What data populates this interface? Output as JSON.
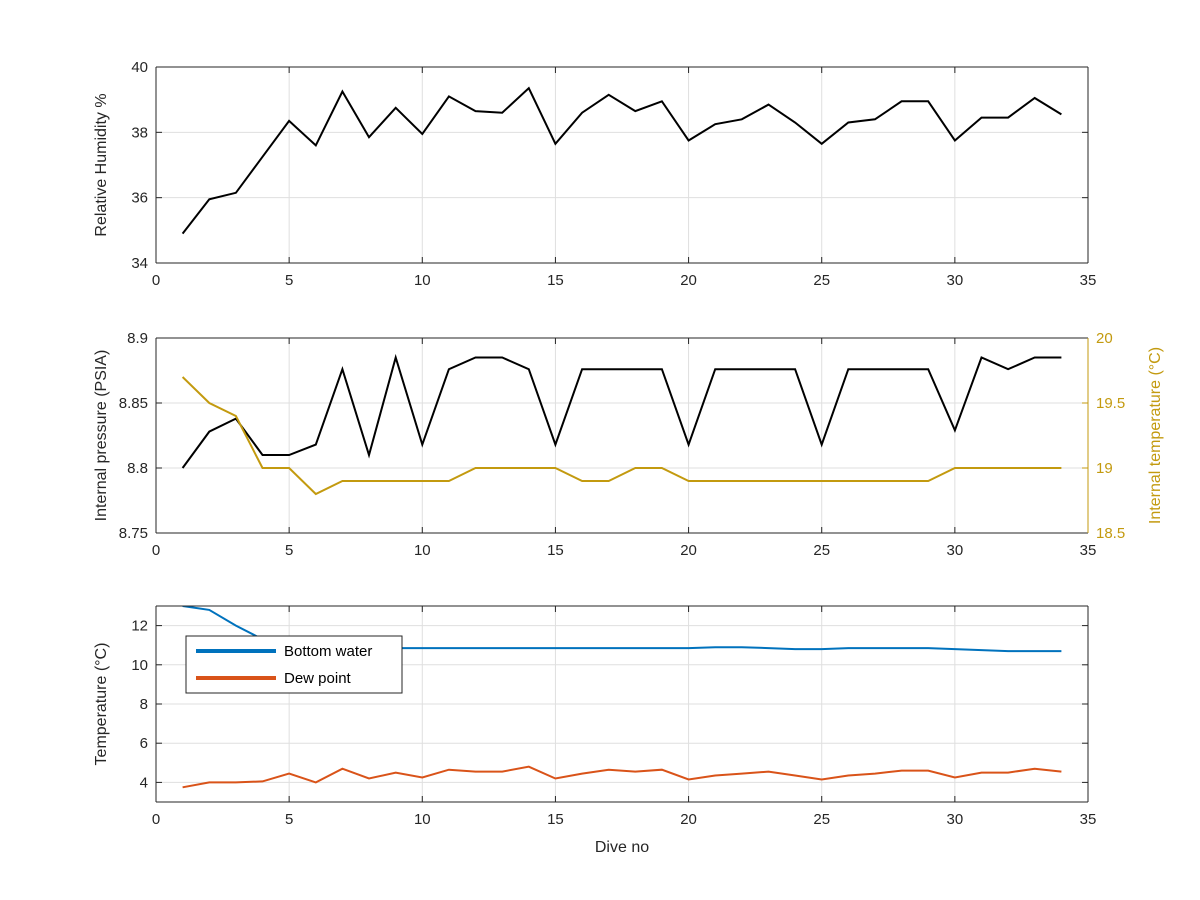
{
  "chart_data": [
    {
      "type": "line",
      "xlim": [
        0,
        35
      ],
      "ylim": [
        34,
        40
      ],
      "xticks": [
        "0",
        "5",
        "10",
        "15",
        "20",
        "25",
        "30",
        "35"
      ],
      "yticks": [
        "34",
        "36",
        "38",
        "40"
      ],
      "xlabel": "",
      "ylabel": "Relative Humidity %",
      "grid": true,
      "series": [
        {
          "color": "#000000",
          "x": [
            1,
            2,
            3,
            4,
            5,
            6,
            7,
            8,
            9,
            10,
            11,
            12,
            13,
            14,
            15,
            16,
            17,
            18,
            19,
            20,
            21,
            22,
            23,
            24,
            25,
            26,
            27,
            28,
            29,
            30,
            31,
            32,
            33,
            34
          ],
          "values": [
            34.9,
            35.95,
            36.15,
            37.25,
            38.35,
            37.6,
            39.25,
            37.85,
            38.75,
            37.95,
            39.1,
            38.65,
            38.6,
            39.35,
            37.65,
            38.6,
            39.15,
            38.65,
            38.95,
            37.75,
            38.25,
            38.4,
            38.85,
            38.3,
            37.65,
            38.3,
            38.4,
            38.95,
            38.95,
            37.75,
            38.45,
            38.45,
            39.05,
            38.55
          ]
        }
      ]
    },
    {
      "type": "line",
      "xlim": [
        0,
        35
      ],
      "ylim": [
        8.75,
        8.9
      ],
      "ylim_right": [
        18.5,
        20
      ],
      "xticks": [
        "0",
        "5",
        "10",
        "15",
        "20",
        "25",
        "30",
        "35"
      ],
      "yticks": [
        "8.75",
        "8.8",
        "8.85",
        "8.9"
      ],
      "yticks_right": [
        "18.5",
        "19",
        "19.5",
        "20"
      ],
      "xlabel": "",
      "ylabel": "Internal pressure (PSIA)",
      "ylabel_right": "Internal temperature (°C)",
      "right_axis_color": "#C39A0F",
      "grid": true,
      "series": [
        {
          "axis": "left",
          "color": "#000000",
          "x": [
            1,
            2,
            3,
            4,
            5,
            6,
            7,
            8,
            9,
            10,
            11,
            12,
            13,
            14,
            15,
            16,
            17,
            18,
            19,
            20,
            21,
            22,
            23,
            24,
            25,
            26,
            27,
            28,
            29,
            30,
            31,
            32,
            33,
            34
          ],
          "values": [
            8.8,
            8.828,
            8.838,
            8.81,
            8.81,
            8.818,
            8.876,
            8.81,
            8.885,
            8.818,
            8.876,
            8.885,
            8.885,
            8.876,
            8.818,
            8.876,
            8.876,
            8.876,
            8.876,
            8.818,
            8.876,
            8.876,
            8.876,
            8.876,
            8.818,
            8.876,
            8.876,
            8.876,
            8.876,
            8.829,
            8.885,
            8.876,
            8.885,
            8.885
          ]
        },
        {
          "axis": "right",
          "color": "#C39A0F",
          "x": [
            1,
            2,
            3,
            4,
            5,
            6,
            7,
            8,
            9,
            10,
            11,
            12,
            13,
            14,
            15,
            16,
            17,
            18,
            19,
            20,
            21,
            22,
            23,
            24,
            25,
            26,
            27,
            28,
            29,
            30,
            31,
            32,
            33,
            34
          ],
          "values": [
            19.7,
            19.5,
            19.4,
            19.0,
            19.0,
            18.8,
            18.9,
            18.9,
            18.9,
            18.9,
            18.9,
            19.0,
            19.0,
            19.0,
            19.0,
            18.9,
            18.9,
            19.0,
            19.0,
            18.9,
            18.9,
            18.9,
            18.9,
            18.9,
            18.9,
            18.9,
            18.9,
            18.9,
            18.9,
            19.0,
            19.0,
            19.0,
            19.0,
            19.0
          ]
        }
      ]
    },
    {
      "type": "line",
      "xlim": [
        0,
        35
      ],
      "ylim": [
        3,
        13
      ],
      "xticks": [
        "0",
        "5",
        "10",
        "15",
        "20",
        "25",
        "30",
        "35"
      ],
      "yticks": [
        "4",
        "6",
        "8",
        "10",
        "12"
      ],
      "xlabel": "Dive no",
      "ylabel": "Temperature (°C)",
      "grid": true,
      "legend_position": "top-left",
      "series": [
        {
          "name": "Bottom water",
          "color": "#0072BD",
          "x": [
            1,
            2,
            3,
            4,
            5,
            6,
            7,
            8,
            9,
            10,
            11,
            12,
            13,
            14,
            15,
            16,
            17,
            18,
            19,
            20,
            21,
            22,
            23,
            24,
            25,
            26,
            27,
            28,
            29,
            30,
            31,
            32,
            33,
            34
          ],
          "values": [
            13.0,
            12.8,
            12.0,
            11.3,
            10.9,
            10.85,
            10.85,
            10.85,
            10.85,
            10.85,
            10.85,
            10.85,
            10.85,
            10.85,
            10.85,
            10.85,
            10.85,
            10.85,
            10.85,
            10.85,
            10.9,
            10.9,
            10.85,
            10.8,
            10.8,
            10.85,
            10.85,
            10.85,
            10.85,
            10.8,
            10.75,
            10.7,
            10.7,
            10.7
          ]
        },
        {
          "name": "Dew point",
          "color": "#D95319",
          "x": [
            1,
            2,
            3,
            4,
            5,
            6,
            7,
            8,
            9,
            10,
            11,
            12,
            13,
            14,
            15,
            16,
            17,
            18,
            19,
            20,
            21,
            22,
            23,
            24,
            25,
            26,
            27,
            28,
            29,
            30,
            31,
            32,
            33,
            34
          ],
          "values": [
            3.75,
            4.0,
            4.0,
            4.05,
            4.45,
            4.0,
            4.7,
            4.2,
            4.5,
            4.25,
            4.65,
            4.55,
            4.55,
            4.8,
            4.2,
            4.45,
            4.65,
            4.55,
            4.65,
            4.15,
            4.35,
            4.45,
            4.55,
            4.35,
            4.15,
            4.35,
            4.45,
            4.6,
            4.6,
            4.25,
            4.5,
            4.5,
            4.7,
            4.55
          ]
        }
      ]
    }
  ]
}
